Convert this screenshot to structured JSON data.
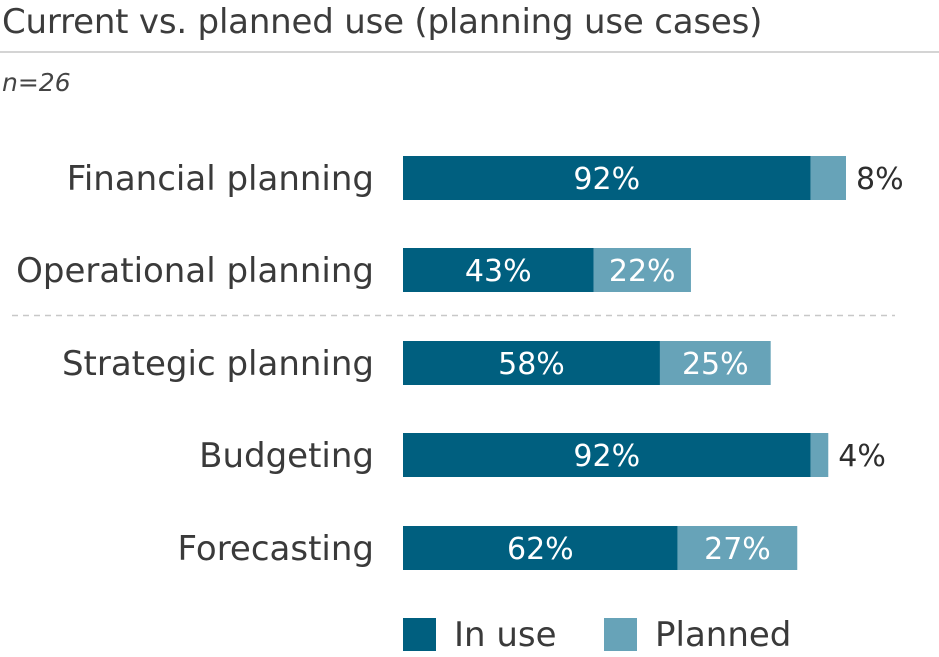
{
  "title": "Current vs. planned use (planning use cases)",
  "subtitle": "n=26",
  "colors": {
    "in_use": "#005f7f",
    "planned": "#67a3b8",
    "divider": "#c8c8c8"
  },
  "chart_data": {
    "type": "bar",
    "orientation": "horizontal",
    "stacked": true,
    "categories": [
      "Financial planning",
      "Operational planning",
      "Strategic planning",
      "Budgeting",
      "Forecasting"
    ],
    "series": [
      {
        "name": "In use",
        "values": [
          92,
          43,
          58,
          92,
          62
        ],
        "labels": [
          "92%",
          "43%",
          "58%",
          "92%",
          "62%"
        ]
      },
      {
        "name": "Planned",
        "values": [
          8,
          22,
          25,
          4,
          27
        ],
        "labels": [
          "8%",
          "22%",
          "25%",
          "4%",
          "27%"
        ]
      }
    ],
    "xlim": [
      0,
      100
    ],
    "grid": false,
    "legend_position": "bottom",
    "divider_after_category_index": 1
  }
}
